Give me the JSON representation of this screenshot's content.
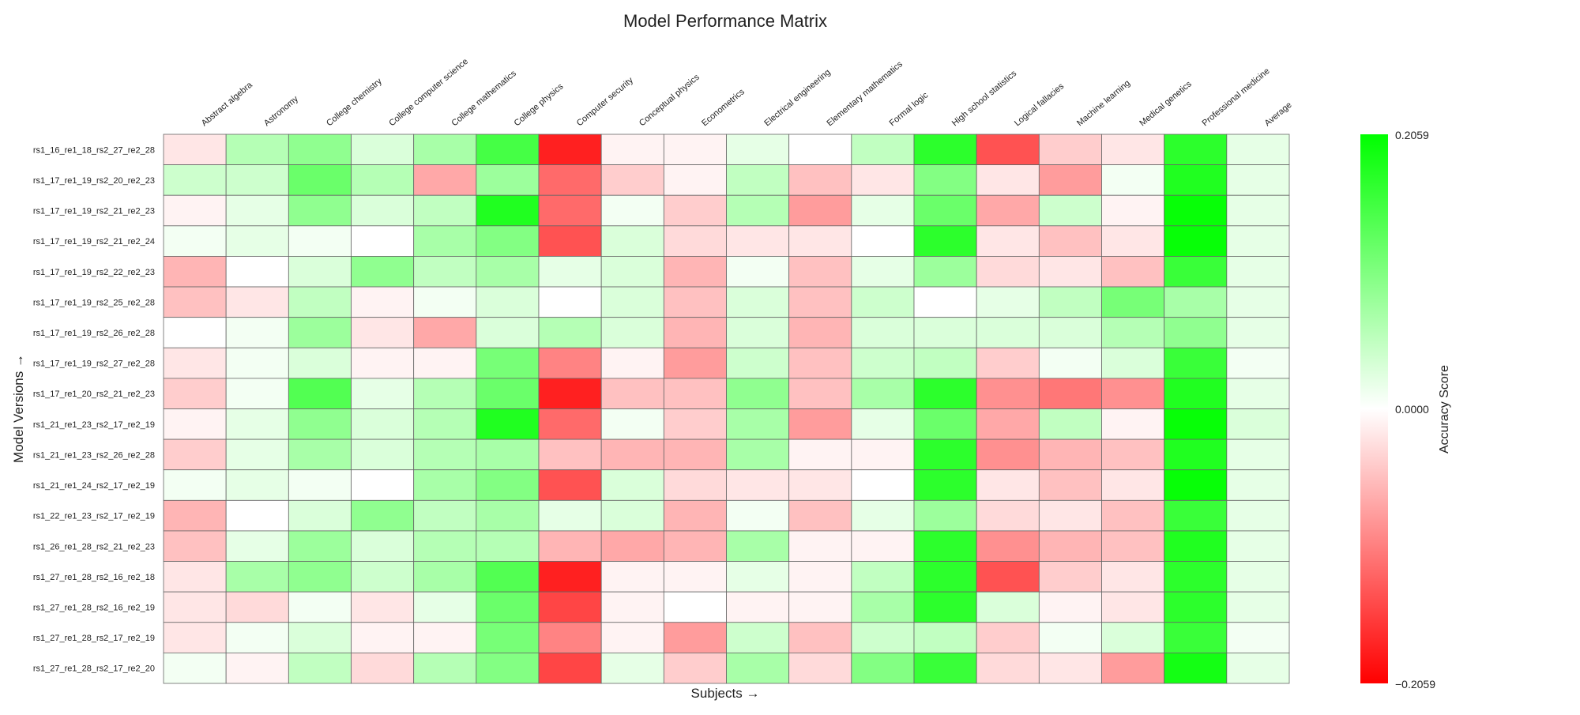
{
  "chart_data": {
    "type": "heatmap",
    "title": "Model Performance Matrix",
    "xlabel": "Subjects →",
    "ylabel": "Model Versions →",
    "colorbar_label": "Accuracy Score",
    "colorbar_ticks": [
      "0.2059",
      "0.0000",
      "−0.2059"
    ],
    "vmin": -0.2059,
    "vmax": 0.2059,
    "colormap": {
      "low": "#ff0000",
      "mid": "#ffffff",
      "high": "#00ff00"
    },
    "columns": [
      "Abstract algebra",
      "Astronomy",
      "College chemistry",
      "College computer science",
      "College mathematics",
      "College physics",
      "Computer security",
      "Conceptual physics",
      "Econometrics",
      "Electrical engineering",
      "Elementary mathematics",
      "Formal logic",
      "High school statistics",
      "Logical fallacies",
      "Machine learning",
      "Medical genetics",
      "Professional medicine",
      "Average"
    ],
    "rows": [
      "rs1_16_re1_18_rs2_27_re2_28",
      "rs1_17_re1_19_rs2_20_re2_23",
      "rs1_17_re1_19_rs2_21_re2_23",
      "rs1_17_re1_19_rs2_21_re2_24",
      "rs1_17_re1_19_rs2_22_re2_23",
      "rs1_17_re1_19_rs2_25_re2_28",
      "rs1_17_re1_19_rs2_26_re2_28",
      "rs1_17_re1_19_rs2_27_re2_28",
      "rs1_17_re1_20_rs2_21_re2_23",
      "rs1_21_re1_23_rs2_17_re2_19",
      "rs1_21_re1_23_rs2_26_re2_28",
      "rs1_21_re1_24_rs2_17_re2_19",
      "rs1_22_re1_23_rs2_17_re2_19",
      "rs1_26_re1_28_rs2_21_re2_23",
      "rs1_27_re1_28_rs2_16_re2_18",
      "rs1_27_re1_28_rs2_16_re2_19",
      "rs1_27_re1_28_rs2_17_re2_19",
      "rs1_27_re1_28_rs2_17_re2_20"
    ],
    "values": [
      [
        -0.02,
        0.06,
        0.09,
        0.03,
        0.07,
        0.15,
        -0.18,
        -0.01,
        -0.01,
        0.02,
        0.0,
        0.05,
        0.17,
        -0.14,
        -0.04,
        -0.02,
        0.17,
        0.02
      ],
      [
        0.04,
        0.04,
        0.12,
        0.06,
        -0.07,
        0.08,
        -0.12,
        -0.04,
        -0.01,
        0.05,
        -0.05,
        -0.02,
        0.1,
        -0.02,
        -0.08,
        0.01,
        0.18,
        0.02
      ],
      [
        -0.01,
        0.02,
        0.09,
        0.03,
        0.05,
        0.18,
        -0.12,
        0.01,
        -0.04,
        0.06,
        -0.08,
        0.02,
        0.12,
        -0.07,
        0.04,
        -0.01,
        0.2,
        0.02
      ],
      [
        0.01,
        0.02,
        0.01,
        0.0,
        0.07,
        0.1,
        -0.14,
        0.03,
        -0.03,
        -0.02,
        -0.02,
        0.0,
        0.17,
        -0.02,
        -0.05,
        -0.02,
        0.2,
        0.02
      ],
      [
        -0.06,
        0.0,
        0.03,
        0.09,
        0.05,
        0.07,
        0.02,
        0.03,
        -0.06,
        0.01,
        -0.05,
        0.02,
        0.08,
        -0.03,
        -0.02,
        -0.05,
        0.16,
        0.02
      ],
      [
        -0.05,
        -0.02,
        0.05,
        -0.01,
        0.01,
        0.03,
        0.0,
        0.03,
        -0.05,
        0.03,
        -0.05,
        0.04,
        0.0,
        0.02,
        0.05,
        0.11,
        0.07,
        0.02
      ],
      [
        0.0,
        0.01,
        0.08,
        -0.02,
        -0.07,
        0.03,
        0.06,
        0.03,
        -0.06,
        0.03,
        -0.06,
        0.03,
        0.03,
        0.03,
        0.03,
        0.06,
        0.09,
        0.02
      ],
      [
        -0.02,
        0.01,
        0.03,
        -0.01,
        -0.01,
        0.11,
        -0.1,
        -0.01,
        -0.08,
        0.04,
        -0.05,
        0.04,
        0.05,
        -0.04,
        0.01,
        0.03,
        0.16,
        0.01
      ],
      [
        -0.04,
        0.01,
        0.14,
        0.02,
        0.06,
        0.12,
        -0.18,
        -0.05,
        -0.05,
        0.09,
        -0.05,
        0.07,
        0.17,
        -0.09,
        -0.11,
        -0.09,
        0.18,
        0.02
      ],
      [
        -0.01,
        0.02,
        0.09,
        0.03,
        0.06,
        0.18,
        -0.12,
        0.01,
        -0.04,
        0.07,
        -0.08,
        0.02,
        0.12,
        -0.07,
        0.05,
        -0.01,
        0.2,
        0.03
      ],
      [
        -0.04,
        0.02,
        0.07,
        0.03,
        0.06,
        0.07,
        -0.05,
        -0.06,
        -0.06,
        0.07,
        -0.01,
        -0.01,
        0.17,
        -0.09,
        -0.06,
        -0.05,
        0.18,
        0.02
      ],
      [
        0.01,
        0.02,
        0.01,
        0.0,
        0.07,
        0.1,
        -0.14,
        0.03,
        -0.03,
        -0.02,
        -0.02,
        0.0,
        0.17,
        -0.02,
        -0.05,
        -0.02,
        0.2,
        0.02
      ],
      [
        -0.06,
        0.0,
        0.03,
        0.09,
        0.05,
        0.07,
        0.02,
        0.03,
        -0.06,
        0.01,
        -0.05,
        0.02,
        0.08,
        -0.03,
        -0.02,
        -0.05,
        0.16,
        0.02
      ],
      [
        -0.05,
        0.02,
        0.08,
        0.03,
        0.06,
        0.06,
        -0.06,
        -0.07,
        -0.06,
        0.07,
        -0.01,
        -0.01,
        0.17,
        -0.09,
        -0.06,
        -0.05,
        0.18,
        0.02
      ],
      [
        -0.02,
        0.07,
        0.09,
        0.04,
        0.07,
        0.14,
        -0.18,
        -0.01,
        -0.01,
        0.02,
        -0.01,
        0.05,
        0.17,
        -0.14,
        -0.04,
        -0.02,
        0.17,
        0.02
      ],
      [
        -0.02,
        -0.03,
        0.01,
        -0.02,
        0.02,
        0.12,
        -0.15,
        -0.01,
        0.0,
        -0.01,
        -0.01,
        0.07,
        0.17,
        0.03,
        -0.01,
        -0.02,
        0.17,
        0.02
      ],
      [
        -0.02,
        0.01,
        0.03,
        -0.01,
        -0.01,
        0.11,
        -0.1,
        -0.01,
        -0.08,
        0.04,
        -0.05,
        0.04,
        0.05,
        -0.04,
        0.01,
        0.03,
        0.16,
        0.01
      ],
      [
        0.01,
        -0.01,
        0.05,
        -0.03,
        0.06,
        0.1,
        -0.15,
        0.02,
        -0.04,
        0.07,
        -0.03,
        0.1,
        0.16,
        -0.03,
        -0.02,
        -0.08,
        0.19,
        0.02
      ]
    ]
  }
}
